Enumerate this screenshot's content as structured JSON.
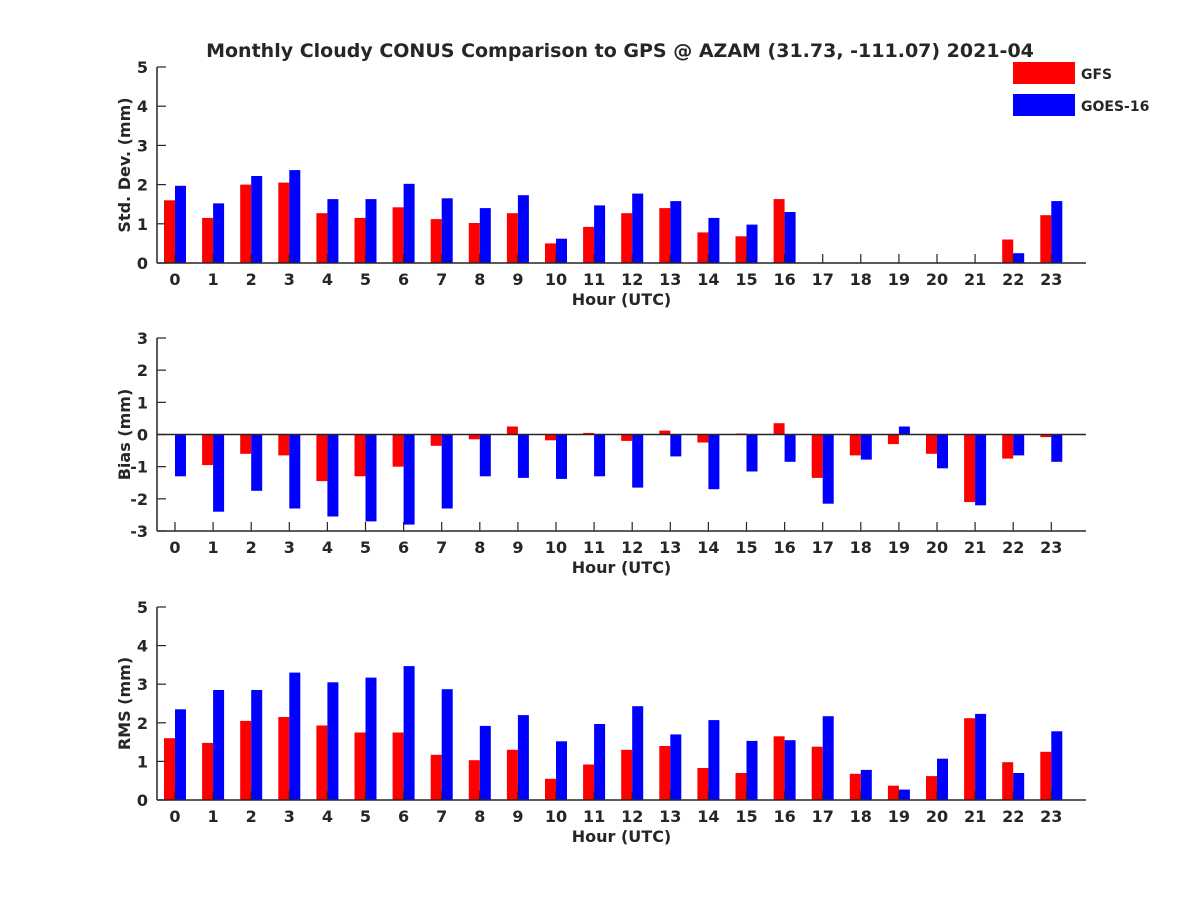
{
  "colors": {
    "gfs": "#ff0000",
    "goes16": "#0000ff",
    "axis": "#262626"
  },
  "chart_data": {
    "type": "bar",
    "title": "Monthly Cloudy CONUS Comparison to GPS @ AZAM (31.73, -111.07) 2021-04",
    "legend": {
      "position": "top-right",
      "entries": [
        "GFS",
        "GOES-16"
      ]
    },
    "categories": [
      "0",
      "1",
      "2",
      "3",
      "4",
      "5",
      "6",
      "7",
      "8",
      "9",
      "10",
      "11",
      "12",
      "13",
      "14",
      "15",
      "16",
      "17",
      "18",
      "19",
      "20",
      "21",
      "22",
      "23"
    ],
    "panels": [
      {
        "id": "std",
        "ylabel": "Std. Dev. (mm)",
        "xlabel": "Hour (UTC)",
        "ylim": [
          0,
          5
        ],
        "yticks": [
          "0",
          "1",
          "2",
          "3",
          "4",
          "5"
        ],
        "series": [
          {
            "name": "GFS",
            "values": [
              1.6,
              1.15,
              2.0,
              2.05,
              1.27,
              1.15,
              1.42,
              1.12,
              1.02,
              1.27,
              0.5,
              0.92,
              1.27,
              1.4,
              0.78,
              0.68,
              1.63,
              0,
              0,
              0,
              0,
              0,
              0.6,
              1.22
            ]
          },
          {
            "name": "GOES-16",
            "values": [
              1.97,
              1.52,
              2.22,
              2.37,
              1.63,
              1.63,
              2.02,
              1.65,
              1.4,
              1.73,
              0.62,
              1.47,
              1.77,
              1.58,
              1.15,
              0.98,
              1.3,
              0,
              0,
              0,
              0,
              0,
              0.25,
              1.58
            ]
          }
        ]
      },
      {
        "id": "bias",
        "ylabel": "Bias (mm)",
        "xlabel": "Hour (UTC)",
        "ylim": [
          -3,
          3
        ],
        "yticks": [
          "-3",
          "-2",
          "-1",
          "0",
          "1",
          "2",
          "3"
        ],
        "series": [
          {
            "name": "GFS",
            "values": [
              0,
              -0.95,
              -0.6,
              -0.65,
              -1.45,
              -1.3,
              -1.0,
              -0.35,
              -0.15,
              0.25,
              -0.18,
              0.05,
              -0.2,
              0.12,
              -0.25,
              0.03,
              0.35,
              -1.35,
              -0.65,
              -0.3,
              -0.6,
              -2.1,
              -0.75,
              -0.08
            ]
          },
          {
            "name": "GOES-16",
            "values": [
              -1.3,
              -2.4,
              -1.75,
              -2.3,
              -2.55,
              -2.7,
              -2.8,
              -2.3,
              -1.3,
              -1.35,
              -1.38,
              -1.3,
              -1.65,
              -0.68,
              -1.7,
              -1.15,
              -0.85,
              -2.15,
              -0.78,
              0.25,
              -1.05,
              -2.2,
              -0.65,
              -0.85
            ]
          }
        ]
      },
      {
        "id": "rms",
        "ylabel": "RMS (mm)",
        "xlabel": "Hour (UTC)",
        "ylim": [
          0,
          5
        ],
        "yticks": [
          "0",
          "1",
          "2",
          "3",
          "4",
          "5"
        ],
        "series": [
          {
            "name": "GFS",
            "values": [
              1.6,
              1.48,
              2.05,
              2.15,
              1.93,
              1.75,
              1.75,
              1.17,
              1.03,
              1.3,
              0.55,
              0.92,
              1.3,
              1.4,
              0.83,
              0.7,
              1.65,
              1.38,
              0.68,
              0.37,
              0.62,
              2.12,
              0.98,
              1.25
            ]
          },
          {
            "name": "GOES-16",
            "values": [
              2.35,
              2.85,
              2.85,
              3.3,
              3.05,
              3.17,
              3.47,
              2.87,
              1.92,
              2.2,
              1.52,
              1.97,
              2.43,
              1.7,
              2.07,
              1.53,
              1.55,
              2.17,
              0.78,
              0.27,
              1.07,
              2.23,
              0.7,
              1.78
            ]
          }
        ]
      }
    ]
  }
}
